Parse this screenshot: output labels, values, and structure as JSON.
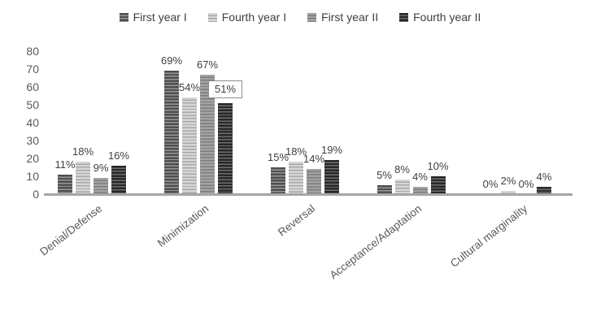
{
  "chart_data": {
    "type": "bar",
    "title": "",
    "categories": [
      "Denial/Defense",
      "Minimization",
      "Reversal",
      "Acceptance/Adaptation",
      "Cultural marginality"
    ],
    "series": [
      {
        "name": "First year I",
        "values": [
          11,
          69,
          15,
          5,
          0
        ],
        "labels": [
          "11%",
          "69%",
          "15%",
          "5%",
          "0%"
        ],
        "base_color": "#4f4f4f",
        "stripe_color": "#979797"
      },
      {
        "name": "Fourth year I",
        "values": [
          18,
          54,
          18,
          8,
          2
        ],
        "labels": [
          "18%",
          "54%",
          "18%",
          "8%",
          "2%"
        ],
        "base_color": "#d6d6d6",
        "stripe_color": "#a8a8a8"
      },
      {
        "name": "First year II",
        "values": [
          9,
          67,
          14,
          4,
          0
        ],
        "labels": [
          "9%",
          "67%",
          "14%",
          "4%",
          "0%"
        ],
        "base_color": "#a3a3a3",
        "stripe_color": "#7d7d7d"
      },
      {
        "name": "Fourth year II",
        "values": [
          16,
          51,
          19,
          10,
          4
        ],
        "labels": [
          "16%",
          "51%",
          "19%",
          "10%",
          "4%"
        ],
        "base_color": "#282828",
        "stripe_color": "#6e6e6e"
      }
    ],
    "boxed_label": {
      "series_index": 3,
      "category_index": 1,
      "text": "51%"
    },
    "ylim": [
      0,
      80
    ],
    "yticks": [
      "0",
      "10",
      "20",
      "30",
      "40",
      "50",
      "60",
      "70",
      "80"
    ],
    "legend_position": "top",
    "grid": false,
    "axis_line_color": "#a6a6a6",
    "data_label_color": "#3f3f3f",
    "tick_label_color": "#595959",
    "legend_label_color": "#404040"
  }
}
